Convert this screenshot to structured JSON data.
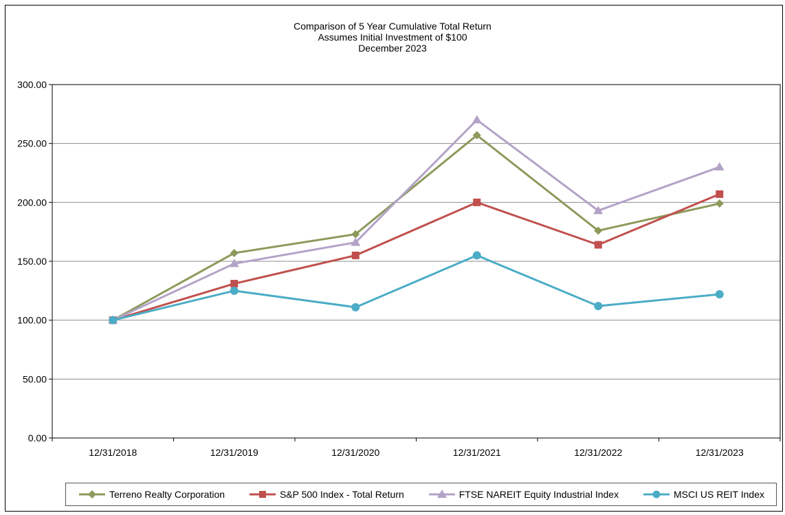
{
  "chart_data": {
    "type": "line",
    "title": "Comparison of 5 Year Cumulative Total Return",
    "subtitle": "Assumes Initial Investment of $100",
    "subtitle2": "December 2023",
    "xlabel": "",
    "ylabel": "",
    "categories": [
      "12/31/2018",
      "12/31/2019",
      "12/31/2020",
      "12/31/2021",
      "12/31/2022",
      "12/31/2023"
    ],
    "ylim": [
      0,
      300
    ],
    "yticks": [
      "0.00",
      "50.00",
      "100.00",
      "150.00",
      "200.00",
      "250.00",
      "300.00"
    ],
    "grid": true,
    "legend_position": "bottom",
    "series": [
      {
        "name": "Terreno Realty Corporation",
        "color": "#8c9a5b",
        "marker": "diamond",
        "values": [
          100,
          157,
          173,
          257,
          176,
          199
        ]
      },
      {
        "name": "S&P 500 Index - Total Return",
        "color": "#c0504d",
        "marker": "square",
        "values": [
          100,
          131,
          155,
          200,
          164,
          207
        ]
      },
      {
        "name": "FTSE NAREIT Equity Industrial Index",
        "color": "#b3a2c7",
        "marker": "triangle",
        "values": [
          100,
          148,
          166,
          270,
          193,
          230
        ]
      },
      {
        "name": "MSCI US REIT Index",
        "color": "#4bacc6",
        "marker": "circle",
        "values": [
          100,
          125,
          111,
          155,
          112,
          122
        ]
      }
    ]
  }
}
